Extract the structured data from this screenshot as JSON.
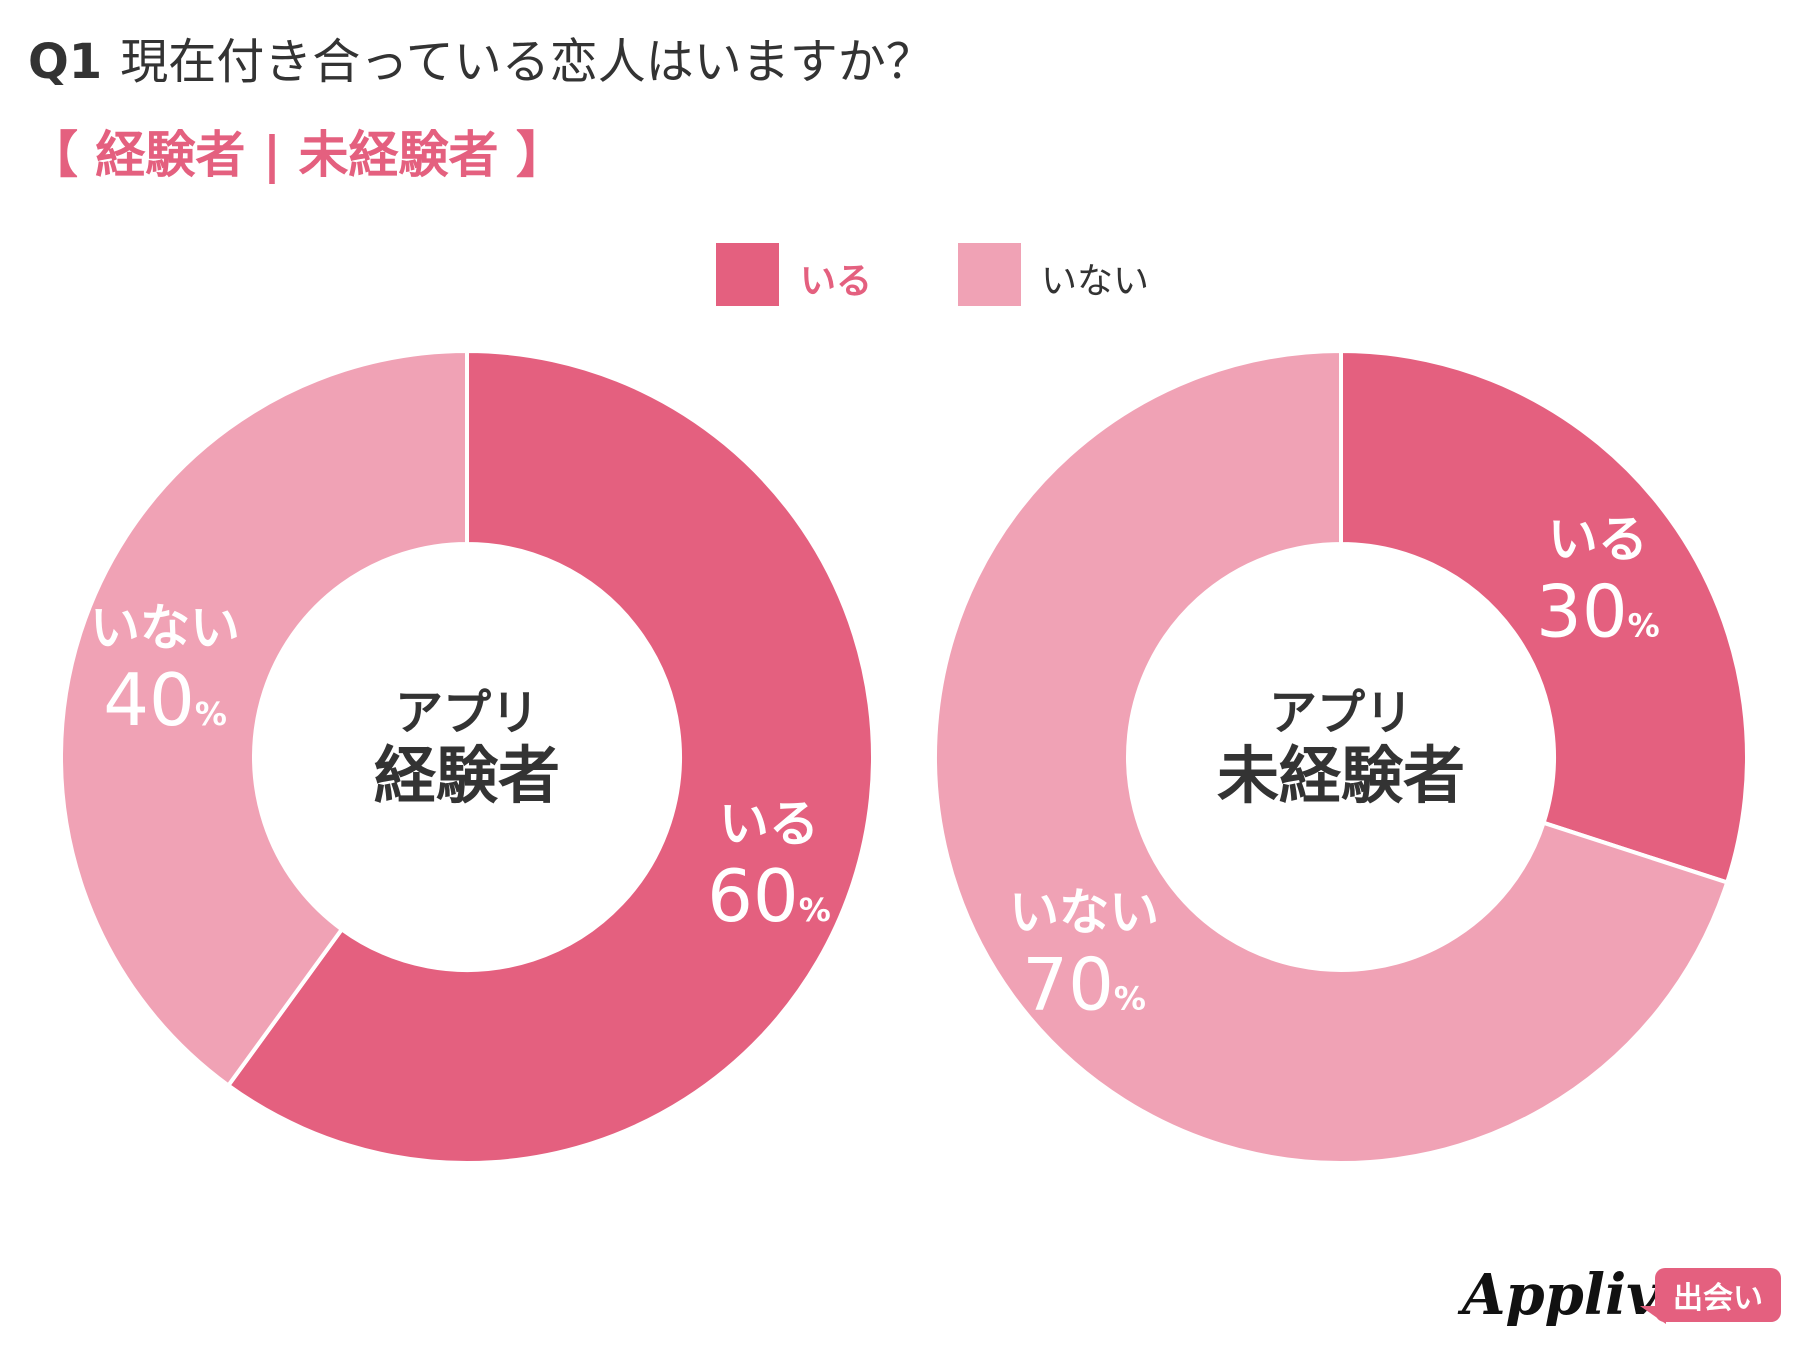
{
  "title": {
    "q": "Q1",
    "text": "現在付き合っている恋人はいますか？"
  },
  "subtitle": "【 経験者 | 未経験者 】",
  "colors": {
    "iru": "#e4607f",
    "inai": "#f0a2b5",
    "text": "#333333"
  },
  "legend": [
    {
      "label": "いる",
      "color": "#e4607f"
    },
    {
      "label": "いない",
      "color": "#f0a2b5"
    }
  ],
  "chart_data": [
    {
      "type": "pie",
      "donut": true,
      "center_label": [
        "アプリ",
        "経験者"
      ],
      "slices": [
        {
          "label": "いる",
          "value": 60,
          "display": "60"
        },
        {
          "label": "いない",
          "value": 40,
          "display": "40"
        }
      ],
      "unit": "%"
    },
    {
      "type": "pie",
      "donut": true,
      "center_label": [
        "アプリ",
        "未経験者"
      ],
      "slices": [
        {
          "label": "いる",
          "value": 30,
          "display": "30"
        },
        {
          "label": "いない",
          "value": 70,
          "display": "70"
        }
      ],
      "unit": "%"
    }
  ],
  "logo": {
    "brand": "Appliv",
    "badge": "出会い"
  }
}
